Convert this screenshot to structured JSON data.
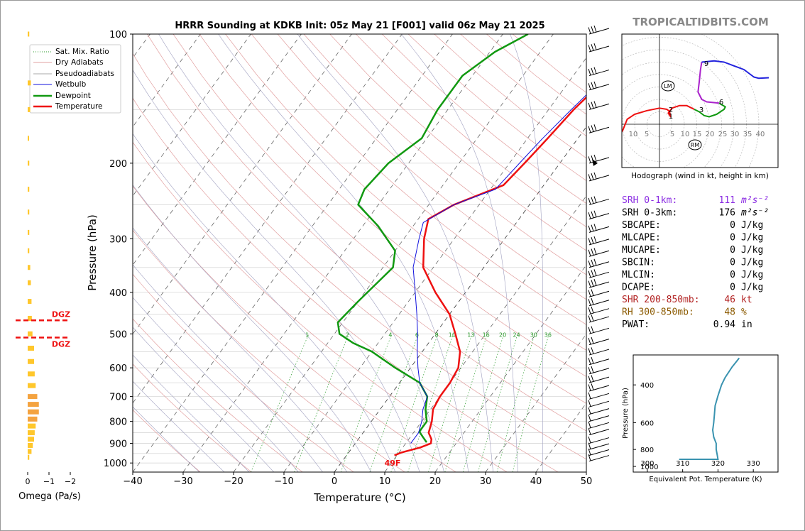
{
  "title": "HRRR Sounding at KDKB Init: 05z May 21 [F001] valid 06z May 21 2025",
  "watermark": "TROPICALTIDBITS.COM",
  "skewt": {
    "xlabel": "Temperature (°C)",
    "ylabel": "Pressure (hPa)",
    "xticks": [
      -40,
      -30,
      -20,
      -10,
      0,
      10,
      20,
      30,
      40,
      50
    ],
    "xlim": [
      -40,
      50
    ],
    "ylim": [
      1050,
      100
    ],
    "pticks": [
      100,
      200,
      300,
      400,
      500,
      600,
      700,
      800,
      900,
      1000
    ],
    "mixing_ratio_labels": [
      1,
      2,
      4,
      6,
      8,
      10,
      13,
      16,
      20,
      24,
      30,
      36
    ],
    "surface_label": "49F",
    "legend": [
      "Sat. Mix. Ratio",
      "Dry Adiabats",
      "Pseudoadiabats",
      "Wetbulb",
      "Dewpoint",
      "Temperature"
    ]
  },
  "chart_data": {
    "type": "line",
    "x_units": "°C",
    "y_units": "hPa",
    "series": [
      {
        "name": "Temperature",
        "color": "#ee1111",
        "points": [
          [
            9.5,
            960
          ],
          [
            10.5,
            945
          ],
          [
            13.5,
            920
          ],
          [
            15,
            900
          ],
          [
            14.5,
            880
          ],
          [
            13,
            850
          ],
          [
            12,
            800
          ],
          [
            10.5,
            750
          ],
          [
            10,
            700
          ],
          [
            10,
            650
          ],
          [
            9.5,
            600
          ],
          [
            7.5,
            550
          ],
          [
            4,
            500
          ],
          [
            0,
            450
          ],
          [
            -6,
            400
          ],
          [
            -12,
            350
          ],
          [
            -16,
            300
          ],
          [
            -18,
            270
          ],
          [
            -15,
            250
          ],
          [
            -8,
            225
          ],
          [
            -7,
            200
          ],
          [
            -6,
            175
          ],
          [
            -5,
            150
          ],
          [
            -3,
            125
          ],
          [
            -1,
            110
          ],
          [
            0.5,
            100
          ]
        ]
      },
      {
        "name": "Dewpoint",
        "color": "#119911",
        "points": [
          [
            14,
            895
          ],
          [
            12.5,
            870
          ],
          [
            11,
            845
          ],
          [
            11,
            800
          ],
          [
            9,
            750
          ],
          [
            7.5,
            700
          ],
          [
            4,
            650
          ],
          [
            -3,
            600
          ],
          [
            -10,
            550
          ],
          [
            -15,
            525
          ],
          [
            -19,
            500
          ],
          [
            -21,
            470
          ],
          [
            -20,
            420
          ],
          [
            -18,
            350
          ],
          [
            -20,
            320
          ],
          [
            -27,
            280
          ],
          [
            -34,
            250
          ],
          [
            -35,
            230
          ],
          [
            -34,
            200
          ],
          [
            -31,
            175
          ],
          [
            -32,
            150
          ],
          [
            -32,
            125
          ],
          [
            -29,
            110
          ],
          [
            -25,
            100
          ]
        ]
      },
      {
        "name": "Wetbulb",
        "color": "#1111dd",
        "points": [
          [
            11,
            900
          ],
          [
            11,
            850
          ],
          [
            10,
            800
          ],
          [
            8.5,
            750
          ],
          [
            7.5,
            700
          ],
          [
            4,
            650
          ],
          [
            1.5,
            600
          ],
          [
            -1,
            550
          ],
          [
            -3.5,
            500
          ],
          [
            -6.5,
            450
          ],
          [
            -10,
            400
          ],
          [
            -14,
            350
          ],
          [
            -17,
            300
          ],
          [
            -18.5,
            275
          ],
          [
            -15,
            250
          ],
          [
            -9,
            230
          ],
          [
            -8,
            200
          ],
          [
            -7,
            175
          ],
          [
            -5.5,
            150
          ],
          [
            -3.5,
            125
          ],
          [
            -1,
            110
          ],
          [
            0.5,
            100
          ]
        ]
      }
    ],
    "omega": {
      "xlabel": "Omega (Pa/s)",
      "xticks": [
        "0",
        "−1",
        "−2"
      ],
      "dgz_label": "DGZ",
      "dgz_pressures": [
        465,
        510
      ],
      "values": [
        [
          100,
          -0.05
        ],
        [
          130,
          -0.1
        ],
        [
          150,
          -0.08
        ],
        [
          175,
          -0.04
        ],
        [
          200,
          -0.05
        ],
        [
          230,
          -0.05
        ],
        [
          260,
          -0.05
        ],
        [
          290,
          -0.05
        ],
        [
          320,
          -0.05
        ],
        [
          350,
          -0.08
        ],
        [
          380,
          -0.1
        ],
        [
          420,
          -0.12
        ],
        [
          460,
          -0.13
        ],
        [
          500,
          -0.15
        ],
        [
          540,
          -0.2
        ],
        [
          580,
          -0.2
        ],
        [
          620,
          -0.22
        ],
        [
          660,
          -0.25
        ],
        [
          700,
          -0.3
        ],
        [
          730,
          -0.35
        ],
        [
          760,
          -0.35
        ],
        [
          790,
          -0.3
        ],
        [
          820,
          -0.25
        ],
        [
          850,
          -0.22
        ],
        [
          880,
          -0.2
        ],
        [
          910,
          -0.16
        ],
        [
          940,
          -0.12
        ],
        [
          970,
          -0.05
        ]
      ]
    },
    "hodograph": {
      "caption": "Hodograph (wind in kt, height in km)",
      "ring_labels": [
        "10",
        "5",
        "5",
        "10",
        "15",
        "20",
        "25",
        "30",
        "35",
        "40"
      ],
      "height_labels": [
        "1",
        "2",
        "3",
        "6",
        "9"
      ],
      "markers": [
        "LM",
        "RM"
      ],
      "segments": [
        {
          "color": "#ee1111",
          "points": [
            [
              -15,
              -3
            ],
            [
              -13,
              2
            ],
            [
              -10,
              4
            ],
            [
              -5,
              5.5
            ],
            [
              0,
              6.5
            ],
            [
              3,
              6
            ],
            [
              4,
              5.2
            ],
            [
              4.5,
              3
            ],
            [
              3.5,
              4.5
            ],
            [
              5,
              6.5
            ],
            [
              8,
              7.5
            ],
            [
              11,
              7.5
            ],
            [
              14,
              6
            ]
          ]
        },
        {
          "color": "#119911",
          "points": [
            [
              14,
              6
            ],
            [
              16,
              5
            ],
            [
              18,
              3.5
            ],
            [
              20,
              3
            ],
            [
              23,
              4
            ],
            [
              26,
              6
            ],
            [
              26.5,
              7
            ],
            [
              24,
              8.5
            ]
          ]
        },
        {
          "color": "#aa22cc",
          "points": [
            [
              24,
              8.5
            ],
            [
              19,
              9
            ],
            [
              17,
              10
            ],
            [
              15.5,
              13
            ],
            [
              16,
              17
            ],
            [
              16.5,
              22
            ],
            [
              17,
              25
            ]
          ]
        },
        {
          "color": "#2222dd",
          "points": [
            [
              17,
              25
            ],
            [
              22,
              25.5
            ],
            [
              26,
              25
            ],
            [
              30,
              23.5
            ],
            [
              34,
              22
            ],
            [
              38,
              19
            ],
            [
              40,
              18.5
            ],
            [
              44,
              18.7
            ]
          ]
        }
      ]
    },
    "theta_e": {
      "ylabel": "Pressure (hPa)",
      "xlabel": "Equivalent Pot. Temperature (K)",
      "xticks": [
        300,
        310,
        320,
        330
      ],
      "yticks": [
        400,
        600,
        800,
        1000
      ],
      "xlim": [
        296,
        337
      ],
      "ylim": [
        1020,
        290
      ],
      "color": "#3a93b0",
      "points": [
        [
          309,
          980
        ],
        [
          311,
          960
        ],
        [
          316,
          940
        ],
        [
          319,
          925
        ],
        [
          320,
          900
        ],
        [
          319.8,
          850
        ],
        [
          319.5,
          800
        ],
        [
          319.5,
          750
        ],
        [
          318.8,
          700
        ],
        [
          318.5,
          650
        ],
        [
          318.8,
          600
        ],
        [
          319,
          550
        ],
        [
          319.2,
          500
        ],
        [
          320,
          450
        ],
        [
          321,
          400
        ],
        [
          322,
          370
        ],
        [
          324,
          330
        ],
        [
          326,
          300
        ]
      ]
    }
  },
  "indices": [
    {
      "label": "SRH 0-1km:",
      "value": "111",
      "unit": "m²s⁻²",
      "color": "#8a2be2"
    },
    {
      "label": "SRH 0-3km:",
      "value": "176",
      "unit": "m²s⁻²",
      "color": "#000000"
    },
    {
      "label": "SBCAPE:",
      "value": "0",
      "unit": "J/kg",
      "color": "#000000"
    },
    {
      "label": "MLCAPE:",
      "value": "0",
      "unit": "J/kg",
      "color": "#000000"
    },
    {
      "label": "MUCAPE:",
      "value": "0",
      "unit": "J/kg",
      "color": "#000000"
    },
    {
      "label": "SBCIN:",
      "value": "0",
      "unit": "J/kg",
      "color": "#000000"
    },
    {
      "label": "MLCIN:",
      "value": "0",
      "unit": "J/kg",
      "color": "#000000"
    },
    {
      "label": "DCAPE:",
      "value": "0",
      "unit": "J/kg",
      "color": "#000000"
    },
    {
      "label": "SHR 200-850mb:",
      "value": "46",
      "unit": "kt",
      "color": "#b22222"
    },
    {
      "label": "RH 300-850mb:",
      "value": "48",
      "unit": "%",
      "color": "#8b5a00"
    },
    {
      "label": "PWAT:",
      "value": "0.94",
      "unit": "in",
      "color": "#000000"
    }
  ]
}
